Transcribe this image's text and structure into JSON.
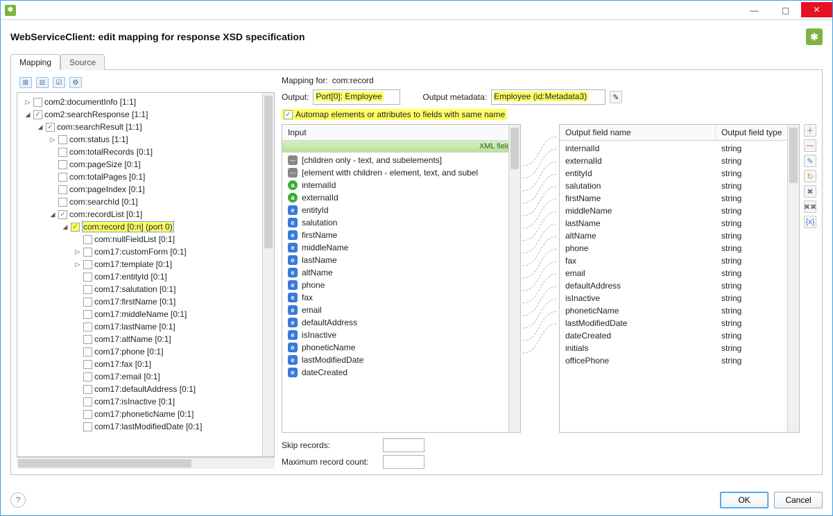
{
  "window": {
    "title": ""
  },
  "header": {
    "title": "WebServiceClient: edit mapping for response XSD specification"
  },
  "tabs": {
    "mapping": "Mapping",
    "source": "Source"
  },
  "tree": [
    {
      "indent": 0,
      "disclose": "▷",
      "checked": false,
      "label": "com2:documentInfo [1:1]"
    },
    {
      "indent": 0,
      "disclose": "◢",
      "checked": true,
      "label": "com2:searchResponse [1:1]"
    },
    {
      "indent": 1,
      "disclose": "◢",
      "checked": true,
      "label": "com:searchResult [1:1]"
    },
    {
      "indent": 2,
      "disclose": "▷",
      "checked": false,
      "label": "com:status [1:1]"
    },
    {
      "indent": 2,
      "disclose": "",
      "checked": false,
      "label": "com:totalRecords [0:1]"
    },
    {
      "indent": 2,
      "disclose": "",
      "checked": false,
      "label": "com:pageSize [0:1]"
    },
    {
      "indent": 2,
      "disclose": "",
      "checked": false,
      "label": "com:totalPages [0:1]"
    },
    {
      "indent": 2,
      "disclose": "",
      "checked": false,
      "label": "com:pageIndex [0:1]"
    },
    {
      "indent": 2,
      "disclose": "",
      "checked": false,
      "label": "com:searchId [0:1]"
    },
    {
      "indent": 2,
      "disclose": "◢",
      "checked": true,
      "label": "com:recordList [0:1]"
    },
    {
      "indent": 3,
      "disclose": "◢",
      "checked": true,
      "label": "com:record [0:n] (port 0)",
      "hl": true,
      "selected": true
    },
    {
      "indent": 4,
      "disclose": "",
      "checked": false,
      "label": "com:nullFieldList [0:1]"
    },
    {
      "indent": 4,
      "disclose": "▷",
      "checked": false,
      "label": "com17:customForm [0:1]"
    },
    {
      "indent": 4,
      "disclose": "▷",
      "checked": false,
      "label": "com17:template [0:1]"
    },
    {
      "indent": 4,
      "disclose": "",
      "checked": false,
      "label": "com17:entityId [0:1]"
    },
    {
      "indent": 4,
      "disclose": "",
      "checked": false,
      "label": "com17:salutation [0:1]"
    },
    {
      "indent": 4,
      "disclose": "",
      "checked": false,
      "label": "com17:firstName [0:1]"
    },
    {
      "indent": 4,
      "disclose": "",
      "checked": false,
      "label": "com17:middleName [0:1]"
    },
    {
      "indent": 4,
      "disclose": "",
      "checked": false,
      "label": "com17:lastName [0:1]"
    },
    {
      "indent": 4,
      "disclose": "",
      "checked": false,
      "label": "com17:altName [0:1]"
    },
    {
      "indent": 4,
      "disclose": "",
      "checked": false,
      "label": "com17:phone [0:1]"
    },
    {
      "indent": 4,
      "disclose": "",
      "checked": false,
      "label": "com17:fax [0:1]"
    },
    {
      "indent": 4,
      "disclose": "",
      "checked": false,
      "label": "com17:email [0:1]"
    },
    {
      "indent": 4,
      "disclose": "",
      "checked": false,
      "label": "com17:defaultAddress [0:1]"
    },
    {
      "indent": 4,
      "disclose": "",
      "checked": false,
      "label": "com17:isInactive [0:1]"
    },
    {
      "indent": 4,
      "disclose": "",
      "checked": false,
      "label": "com17:phoneticName [0:1]"
    },
    {
      "indent": 4,
      "disclose": "",
      "checked": false,
      "label": "com17:lastModifiedDate [0:1]"
    }
  ],
  "mapping_for_label": "Mapping for:",
  "mapping_for_value": "com:record",
  "output_label": "Output:",
  "output_value": "Port[0]: Employee",
  "output_meta_label": "Output metadata:",
  "output_meta_value": "Employee (id:Metadata3)",
  "automap_label": "Automap elements or attributes to fields with same name",
  "input_header": "Input",
  "xml_fields_label": "XML fields",
  "input_items": [
    {
      "badge": "t",
      "label": "[children only - text, and subelements]"
    },
    {
      "badge": "t",
      "label": "[element with children - element, text, and subel"
    },
    {
      "badge": "a",
      "label": "internalId"
    },
    {
      "badge": "a",
      "label": "externalId"
    },
    {
      "badge": "e",
      "label": "entityId"
    },
    {
      "badge": "e",
      "label": "salutation"
    },
    {
      "badge": "e",
      "label": "firstName"
    },
    {
      "badge": "e",
      "label": "middleName"
    },
    {
      "badge": "e",
      "label": "lastName"
    },
    {
      "badge": "e",
      "label": "altName"
    },
    {
      "badge": "e",
      "label": "phone"
    },
    {
      "badge": "e",
      "label": "fax"
    },
    {
      "badge": "e",
      "label": "email"
    },
    {
      "badge": "e",
      "label": "defaultAddress"
    },
    {
      "badge": "e",
      "label": "isInactive"
    },
    {
      "badge": "e",
      "label": "phoneticName"
    },
    {
      "badge": "e",
      "label": "lastModifiedDate"
    },
    {
      "badge": "e",
      "label": "dateCreated"
    }
  ],
  "out_col1": "Output field name",
  "out_col2": "Output field type",
  "output_rows": [
    {
      "name": "internalId",
      "type": "string"
    },
    {
      "name": "externalId",
      "type": "string"
    },
    {
      "name": "entityId",
      "type": "string"
    },
    {
      "name": "salutation",
      "type": "string"
    },
    {
      "name": "firstName",
      "type": "string"
    },
    {
      "name": "middleName",
      "type": "string"
    },
    {
      "name": "lastName",
      "type": "string"
    },
    {
      "name": "altName",
      "type": "string"
    },
    {
      "name": "phone",
      "type": "string"
    },
    {
      "name": "fax",
      "type": "string"
    },
    {
      "name": "email",
      "type": "string"
    },
    {
      "name": "defaultAddress",
      "type": "string"
    },
    {
      "name": "isInactive",
      "type": "string"
    },
    {
      "name": "phoneticName",
      "type": "string"
    },
    {
      "name": "lastModifiedDate",
      "type": "string"
    },
    {
      "name": "dateCreated",
      "type": "string"
    },
    {
      "name": "initials",
      "type": "string"
    },
    {
      "name": "officePhone",
      "type": "string"
    }
  ],
  "skip_label": "Skip records:",
  "max_label": "Maximum record count:",
  "ok": "OK",
  "cancel": "Cancel",
  "colors": {
    "highlight": "#ffff66",
    "selected": "#cde6ff",
    "accent": "#7cb342",
    "close": "#e81123",
    "border": "#bfbfbf"
  }
}
